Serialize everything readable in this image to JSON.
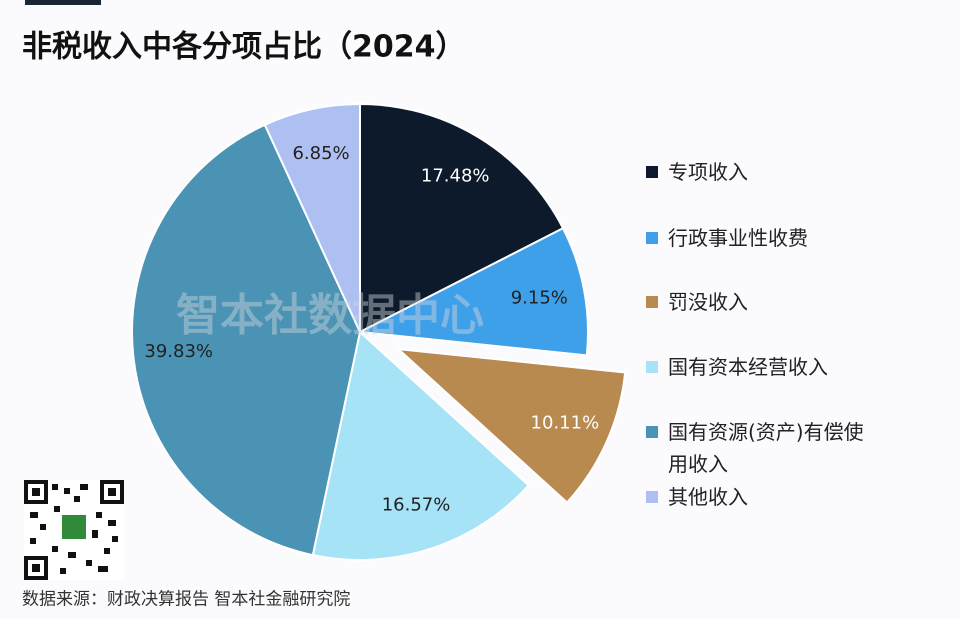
{
  "chart_data": {
    "type": "pie",
    "title": "非税收入中各分项占比（2024）",
    "categories": [
      "专项收入",
      "行政事业性收费",
      "罚没收入",
      "国有资本经营收入",
      "国有资源(资产)有偿使用收入",
      "其他收入"
    ],
    "values": [
      17.48,
      9.15,
      10.11,
      16.57,
      39.83,
      6.85
    ],
    "value_labels": [
      "17.48%",
      "9.15%",
      "10.11%",
      "16.57%",
      "39.83%",
      "6.85%"
    ],
    "colors": [
      "#0c1a2b",
      "#3fa0ea",
      "#b88a50",
      "#a6e3f7",
      "#4a93b5",
      "#aebff2"
    ],
    "label_colors": [
      "#ffffff",
      "#222222",
      "#ffffff",
      "#222222",
      "#222222",
      "#222222"
    ],
    "exploded": [
      "罚没收入"
    ],
    "legend": "right",
    "watermark": "智本社数据中心",
    "source": "数据来源：财政决算报告 智本社金融研究院"
  }
}
